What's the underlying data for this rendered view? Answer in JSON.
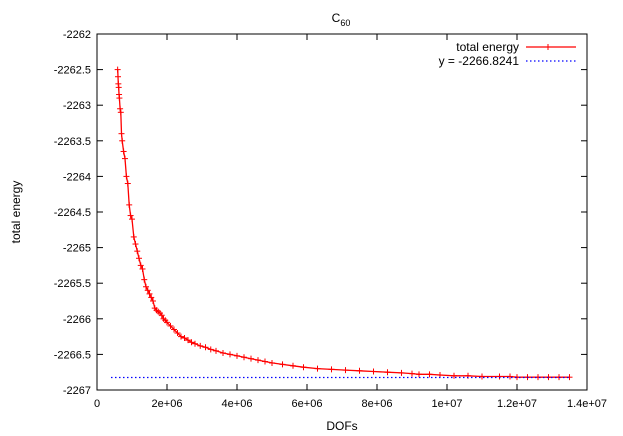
{
  "chart_data": {
    "type": "line",
    "title": "C",
    "title_subscript": "60",
    "xlabel": "DOFs",
    "ylabel": "total energy",
    "xlim": [
      0,
      14000000
    ],
    "ylim": [
      -2267,
      -2262
    ],
    "x_ticks": [
      0,
      2000000,
      4000000,
      6000000,
      8000000,
      10000000,
      12000000,
      14000000
    ],
    "x_tick_labels": [
      "0",
      "2e+06",
      "4e+06",
      "6e+06",
      "8e+06",
      "1e+07",
      "1.2e+07",
      "1.4e+07"
    ],
    "y_ticks": [
      -2262,
      -2262.5,
      -2263,
      -2263.5,
      -2264,
      -2264.5,
      -2265,
      -2265.5,
      -2266,
      -2266.5,
      -2267
    ],
    "y_tick_labels": [
      "-2262",
      "-2262.5",
      "-2263",
      "-2263.5",
      "-2264",
      "-2264.5",
      "-2265",
      "-2265.5",
      "-2266",
      "-2266.5",
      "-2267"
    ],
    "grid": false,
    "legend_position": "top-right",
    "series": [
      {
        "name": "total energy",
        "color": "#ff0000",
        "style": "line-with-plus-markers",
        "x": [
          590000,
          600000,
          610000,
          620000,
          630000,
          640000,
          660000,
          680000,
          700000,
          720000,
          760000,
          800000,
          840000,
          880000,
          920000,
          960000,
          1000000,
          1050000,
          1100000,
          1150000,
          1200000,
          1250000,
          1300000,
          1350000,
          1400000,
          1450000,
          1500000,
          1550000,
          1600000,
          1650000,
          1700000,
          1750000,
          1800000,
          1850000,
          1900000,
          1950000,
          2000000,
          2100000,
          2200000,
          2300000,
          2400000,
          2500000,
          2600000,
          2700000,
          2800000,
          2950000,
          3100000,
          3250000,
          3400000,
          3600000,
          3800000,
          4000000,
          4200000,
          4400000,
          4600000,
          4800000,
          5000000,
          5300000,
          5600000,
          5900000,
          6300000,
          6700000,
          7100000,
          7500000,
          7900000,
          8300000,
          8700000,
          9000000,
          9200000,
          9500000,
          9800000,
          10200000,
          10600000,
          11000000,
          11500000,
          11800000,
          12000000,
          12300000,
          12600000,
          12900000,
          13200000,
          13500000
        ],
        "y": [
          -2262.5,
          -2262.6,
          -2262.7,
          -2262.75,
          -2262.85,
          -2262.9,
          -2263.05,
          -2263.1,
          -2263.4,
          -2263.5,
          -2263.65,
          -2263.75,
          -2264.0,
          -2264.1,
          -2264.4,
          -2264.55,
          -2264.6,
          -2264.85,
          -2264.95,
          -2265.05,
          -2265.15,
          -2265.25,
          -2265.3,
          -2265.45,
          -2265.55,
          -2265.6,
          -2265.65,
          -2265.7,
          -2265.75,
          -2265.85,
          -2265.88,
          -2265.9,
          -2265.92,
          -2265.95,
          -2266.0,
          -2266.02,
          -2266.05,
          -2266.1,
          -2266.15,
          -2266.2,
          -2266.25,
          -2266.27,
          -2266.3,
          -2266.33,
          -2266.35,
          -2266.38,
          -2266.4,
          -2266.43,
          -2266.45,
          -2266.48,
          -2266.5,
          -2266.52,
          -2266.54,
          -2266.56,
          -2266.58,
          -2266.6,
          -2266.62,
          -2266.64,
          -2266.66,
          -2266.68,
          -2266.7,
          -2266.71,
          -2266.72,
          -2266.73,
          -2266.74,
          -2266.75,
          -2266.76,
          -2266.77,
          -2266.78,
          -2266.78,
          -2266.79,
          -2266.8,
          -2266.8,
          -2266.81,
          -2266.81,
          -2266.81,
          -2266.82,
          -2266.82,
          -2266.82,
          -2266.82,
          -2266.82,
          -2266.82
        ]
      },
      {
        "name": "y = -2266.8241",
        "color": "#0000ff",
        "style": "dotted",
        "x": [
          400000,
          13500000
        ],
        "y": [
          -2266.8241,
          -2266.8241
        ]
      }
    ]
  }
}
